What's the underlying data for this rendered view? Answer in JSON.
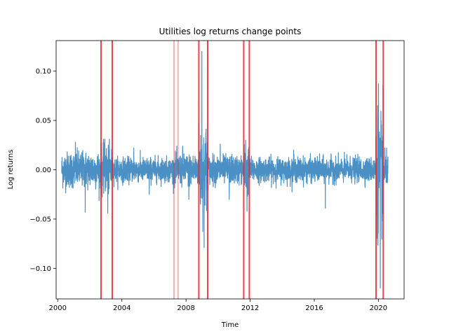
{
  "chart_data": {
    "type": "line",
    "title": "Utilities log returns change points",
    "xlabel": "Time",
    "ylabel": "Log returns",
    "xlim": [
      1999.9,
      2021.6
    ],
    "ylim": [
      -0.131,
      0.131
    ],
    "xticks": [
      2000,
      2004,
      2008,
      2012,
      2016,
      2020
    ],
    "xtick_labels": [
      "2000",
      "2004",
      "2008",
      "2012",
      "2016",
      "2020"
    ],
    "yticks": [
      -0.1,
      -0.05,
      0.0,
      0.05,
      0.1
    ],
    "ytick_labels": [
      "−0.10",
      "−0.05",
      "0.00",
      "0.05",
      "0.10"
    ],
    "grid": false,
    "series_color": "#4a90c4",
    "change_point_color": "#e8262b",
    "change_points": [
      {
        "x": 2002.7,
        "alpha": 0.85
      },
      {
        "x": 2003.4,
        "alpha": 0.85
      },
      {
        "x": 2007.25,
        "alpha": 0.35
      },
      {
        "x": 2007.5,
        "alpha": 0.35
      },
      {
        "x": 2008.8,
        "alpha": 0.85
      },
      {
        "x": 2009.35,
        "alpha": 0.85
      },
      {
        "x": 2011.6,
        "alpha": 0.85
      },
      {
        "x": 2011.95,
        "alpha": 0.85
      },
      {
        "x": 2019.85,
        "alpha": 0.85
      },
      {
        "x": 2020.3,
        "alpha": 0.85
      }
    ],
    "series": [
      {
        "x_start": 2000.25,
        "x_end": 2020.6,
        "regimes": [
          {
            "x0": 2000.25,
            "x1": 2002.7,
            "sigma": 0.009,
            "min": -0.043,
            "max": 0.028
          },
          {
            "x0": 2002.7,
            "x1": 2003.4,
            "sigma": 0.012,
            "min": -0.044,
            "max": 0.031
          },
          {
            "x0": 2003.4,
            "x1": 2007.25,
            "sigma": 0.006,
            "min": -0.025,
            "max": 0.022
          },
          {
            "x0": 2007.25,
            "x1": 2008.8,
            "sigma": 0.008,
            "min": -0.03,
            "max": 0.024
          },
          {
            "x0": 2008.8,
            "x1": 2009.35,
            "sigma": 0.022,
            "min": -0.079,
            "max": 0.12
          },
          {
            "x0": 2009.35,
            "x1": 2011.6,
            "sigma": 0.007,
            "min": -0.03,
            "max": 0.026
          },
          {
            "x0": 2011.6,
            "x1": 2011.95,
            "sigma": 0.012,
            "min": -0.042,
            "max": 0.03
          },
          {
            "x0": 2011.95,
            "x1": 2019.85,
            "sigma": 0.006,
            "min": -0.039,
            "max": 0.02
          },
          {
            "x0": 2019.85,
            "x1": 2020.3,
            "sigma": 0.03,
            "min": -0.12,
            "max": 0.087
          },
          {
            "x0": 2020.3,
            "x1": 2020.6,
            "sigma": 0.01,
            "min": -0.013,
            "max": 0.022
          }
        ]
      }
    ]
  }
}
